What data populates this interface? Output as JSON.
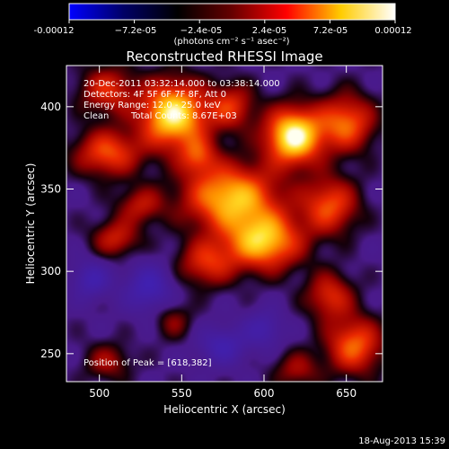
{
  "colorbar": {
    "stops": [
      "#0000ff",
      "#000066",
      "#000000",
      "#660000",
      "#ff0000",
      "#ffcc00",
      "#ffffff"
    ],
    "tick_labels": [
      "-0.00012",
      "−7.2e-05",
      "−2.4e-05",
      "2.4e-05",
      "7.2e-05",
      "0.00012"
    ],
    "units_label": "(photons cm⁻² s⁻¹ asec⁻²)"
  },
  "chart_data": {
    "type": "heatmap",
    "title": "Reconstructed RHESSI Image",
    "xlabel": "Heliocentric X (arcsec)",
    "ylabel": "Heliocentric Y (arcsec)",
    "xlim": [
      480,
      672
    ],
    "ylim": [
      233,
      425
    ],
    "x_ticks": [
      500,
      550,
      600,
      650
    ],
    "y_ticks": [
      250,
      300,
      350,
      400
    ],
    "value_range": [
      -0.00012,
      0.00012
    ],
    "peak_position": [
      618,
      382
    ],
    "background_color": "#4a1a8a",
    "blobs": [
      {
        "x": 618,
        "y": 382,
        "sx": 12,
        "sy": 12,
        "v": 1.0
      },
      {
        "x": 545,
        "y": 395,
        "sx": 14,
        "sy": 14,
        "v": 0.95
      },
      {
        "x": 580,
        "y": 345,
        "sx": 20,
        "sy": 14,
        "v": 0.8
      },
      {
        "x": 600,
        "y": 318,
        "sx": 16,
        "sy": 12,
        "v": 0.8
      },
      {
        "x": 505,
        "y": 372,
        "sx": 14,
        "sy": 10,
        "v": 0.55
      },
      {
        "x": 650,
        "y": 390,
        "sx": 12,
        "sy": 12,
        "v": 0.6
      },
      {
        "x": 640,
        "y": 340,
        "sx": 12,
        "sy": 12,
        "v": 0.55
      },
      {
        "x": 565,
        "y": 305,
        "sx": 12,
        "sy": 10,
        "v": 0.45
      },
      {
        "x": 510,
        "y": 320,
        "sx": 10,
        "sy": 8,
        "v": 0.4
      },
      {
        "x": 655,
        "y": 255,
        "sx": 12,
        "sy": 12,
        "v": 0.6
      },
      {
        "x": 640,
        "y": 285,
        "sx": 10,
        "sy": 10,
        "v": 0.45
      },
      {
        "x": 505,
        "y": 410,
        "sx": 12,
        "sy": 10,
        "v": 0.45
      },
      {
        "x": 580,
        "y": 400,
        "sx": 10,
        "sy": 10,
        "v": 0.45
      },
      {
        "x": 505,
        "y": 245,
        "sx": 10,
        "sy": 8,
        "v": 0.3
      },
      {
        "x": 545,
        "y": 270,
        "sx": 8,
        "sy": 8,
        "v": 0.25
      },
      {
        "x": 620,
        "y": 240,
        "sx": 10,
        "sy": 8,
        "v": 0.3
      },
      {
        "x": 525,
        "y": 340,
        "sx": 10,
        "sy": 8,
        "v": 0.35
      },
      {
        "x": 560,
        "y": 370,
        "sx": 8,
        "sy": 8,
        "v": 0.4
      },
      {
        "x": 530,
        "y": 290,
        "sx": 10,
        "sy": 10,
        "v": -0.4
      },
      {
        "x": 575,
        "y": 255,
        "sx": 10,
        "sy": 8,
        "v": -0.35
      },
      {
        "x": 495,
        "y": 295,
        "sx": 8,
        "sy": 8,
        "v": -0.35
      },
      {
        "x": 600,
        "y": 265,
        "sx": 8,
        "sy": 8,
        "v": -0.3
      }
    ]
  },
  "annotations": {
    "time_range": "20-Dec-2011 03:32:14.000 to 03:38:14.000",
    "detectors": "Detectors: 4F 5F 6F 7F 8F, Att 0",
    "energy_range": "Energy Range: 12.0 - 25.0 keV",
    "algorithm": "Clean",
    "total_counts": "Total Counts: 8.67E+03",
    "peak": "Position of Peak = [618,382]"
  },
  "footer": {
    "timestamp": "18-Aug-2013 15:39"
  }
}
